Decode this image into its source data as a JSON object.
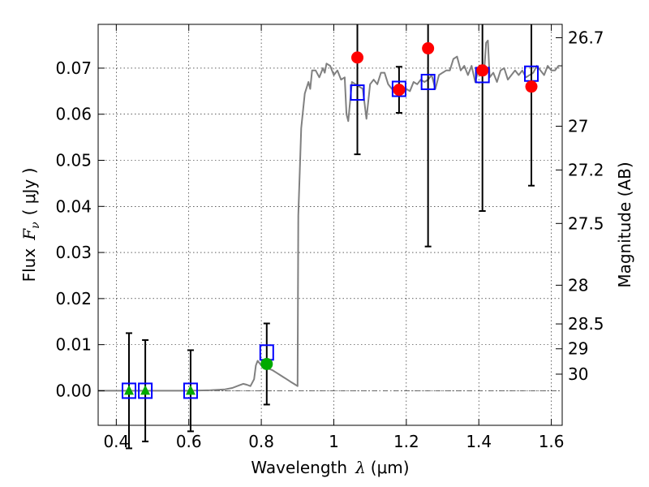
{
  "chart_data": {
    "type": "scatter",
    "xlabel_prefix": "Wavelength",
    "xlabel_symbol": "λ",
    "xlabel_unit": "(μm)",
    "ylabel_prefix": "Flux",
    "ylabel_symbol": "F",
    "ylabel_subscript": "ν",
    "ylabel_unit": "( μJy )",
    "y2label": "Magnitude (AB)",
    "xlim": [
      0.35,
      1.63
    ],
    "ylim": [
      -0.0075,
      0.0795
    ],
    "x_ticks": [
      0.4,
      0.6,
      0.8,
      1.0,
      1.2,
      1.4,
      1.6
    ],
    "x_tick_labels": [
      "0.4",
      "0.6",
      "0.8",
      "1",
      "1.2",
      "1.4",
      "1.6"
    ],
    "y_ticks": [
      0.0,
      0.01,
      0.02,
      0.03,
      0.04,
      0.05,
      0.06,
      0.07
    ],
    "y_tick_labels": [
      "0.00",
      "0.01",
      "0.02",
      "0.03",
      "0.04",
      "0.05",
      "0.06",
      "0.07"
    ],
    "mag_ticks": [
      {
        "label": "26.7",
        "flux": 0.0766
      },
      {
        "label": "27",
        "flux": 0.0574
      },
      {
        "label": "27.2",
        "flux": 0.0479
      },
      {
        "label": "27.5",
        "flux": 0.0363
      },
      {
        "label": "28",
        "flux": 0.0229
      },
      {
        "label": "28.5",
        "flux": 0.0145
      },
      {
        "label": "29",
        "flux": 0.0091
      },
      {
        "label": "30",
        "flux": 0.0036
      }
    ],
    "grid": true,
    "colors": {
      "model": "#808080",
      "model_points": "#0000ff",
      "detections": "#ff0000",
      "upper_limits": "#00aa00",
      "low_sn": "#00aa00",
      "errorbar": "#000000"
    },
    "series": [
      {
        "name": "model spectrum",
        "kind": "line",
        "points": [
          [
            0.35,
            0.0
          ],
          [
            0.6,
            0.0
          ],
          [
            0.66,
            0.0001
          ],
          [
            0.7,
            0.0003
          ],
          [
            0.72,
            0.0006
          ],
          [
            0.74,
            0.0012
          ],
          [
            0.75,
            0.0015
          ],
          [
            0.76,
            0.0013
          ],
          [
            0.77,
            0.001
          ],
          [
            0.78,
            0.0025
          ],
          [
            0.785,
            0.0055
          ],
          [
            0.79,
            0.0065
          ],
          [
            0.8,
            0.0055
          ],
          [
            0.81,
            0.005
          ],
          [
            0.82,
            0.0048
          ],
          [
            0.83,
            0.0045
          ],
          [
            0.84,
            0.004
          ],
          [
            0.85,
            0.0035
          ],
          [
            0.86,
            0.003
          ],
          [
            0.87,
            0.0025
          ],
          [
            0.88,
            0.002
          ],
          [
            0.89,
            0.0015
          ],
          [
            0.9,
            0.001
          ],
          [
            0.902,
            0.038
          ],
          [
            0.91,
            0.057
          ],
          [
            0.92,
            0.0645
          ],
          [
            0.93,
            0.067
          ],
          [
            0.935,
            0.0655
          ],
          [
            0.94,
            0.0695
          ],
          [
            0.95,
            0.0695
          ],
          [
            0.96,
            0.068
          ],
          [
            0.97,
            0.07
          ],
          [
            0.975,
            0.069
          ],
          [
            0.98,
            0.071
          ],
          [
            0.99,
            0.0705
          ],
          [
            1.0,
            0.0685
          ],
          [
            1.01,
            0.0695
          ],
          [
            1.02,
            0.0675
          ],
          [
            1.03,
            0.068
          ],
          [
            1.035,
            0.06
          ],
          [
            1.04,
            0.0585
          ],
          [
            1.05,
            0.067
          ],
          [
            1.07,
            0.066
          ],
          [
            1.08,
            0.0655
          ],
          [
            1.09,
            0.059
          ],
          [
            1.1,
            0.0665
          ],
          [
            1.11,
            0.0675
          ],
          [
            1.12,
            0.0665
          ],
          [
            1.13,
            0.069
          ],
          [
            1.14,
            0.069
          ],
          [
            1.15,
            0.0665
          ],
          [
            1.16,
            0.0655
          ],
          [
            1.17,
            0.066
          ],
          [
            1.19,
            0.0655
          ],
          [
            1.2,
            0.0655
          ],
          [
            1.21,
            0.065
          ],
          [
            1.22,
            0.067
          ],
          [
            1.23,
            0.0665
          ],
          [
            1.24,
            0.0675
          ],
          [
            1.25,
            0.067
          ],
          [
            1.26,
            0.0675
          ],
          [
            1.27,
            0.0685
          ],
          [
            1.28,
            0.0655
          ],
          [
            1.29,
            0.0685
          ],
          [
            1.3,
            0.069
          ],
          [
            1.31,
            0.0695
          ],
          [
            1.32,
            0.0695
          ],
          [
            1.33,
            0.072
          ],
          [
            1.34,
            0.0725
          ],
          [
            1.35,
            0.0695
          ],
          [
            1.36,
            0.0705
          ],
          [
            1.37,
            0.0685
          ],
          [
            1.38,
            0.0705
          ],
          [
            1.39,
            0.067
          ],
          [
            1.4,
            0.07
          ],
          [
            1.41,
            0.07
          ],
          [
            1.415,
            0.0695
          ],
          [
            1.42,
            0.0755
          ],
          [
            1.425,
            0.076
          ],
          [
            1.43,
            0.068
          ],
          [
            1.44,
            0.069
          ],
          [
            1.45,
            0.067
          ],
          [
            1.46,
            0.0695
          ],
          [
            1.47,
            0.07
          ],
          [
            1.48,
            0.0675
          ],
          [
            1.49,
            0.0685
          ],
          [
            1.5,
            0.0695
          ],
          [
            1.51,
            0.0685
          ],
          [
            1.52,
            0.0695
          ],
          [
            1.53,
            0.068
          ],
          [
            1.54,
            0.0685
          ],
          [
            1.55,
            0.069
          ],
          [
            1.56,
            0.0705
          ],
          [
            1.57,
            0.0695
          ],
          [
            1.58,
            0.0685
          ],
          [
            1.59,
            0.0705
          ],
          [
            1.6,
            0.0695
          ],
          [
            1.61,
            0.0695
          ],
          [
            1.62,
            0.0705
          ],
          [
            1.63,
            0.0705
          ]
        ]
      },
      {
        "name": "model photometry",
        "kind": "open-square",
        "points": [
          [
            0.435,
            0.0
          ],
          [
            0.48,
            0.0
          ],
          [
            0.605,
            0.0
          ],
          [
            0.815,
            0.0083
          ],
          [
            1.065,
            0.0647
          ],
          [
            1.18,
            0.0655
          ],
          [
            1.26,
            0.067
          ],
          [
            1.41,
            0.0685
          ],
          [
            1.545,
            0.0688
          ]
        ]
      },
      {
        "name": "detections",
        "kind": "filled-circle",
        "points": [
          [
            1.065,
            0.0723,
            0.021
          ],
          [
            1.18,
            0.0653,
            0.005
          ],
          [
            1.26,
            0.0743,
            0.043
          ],
          [
            1.41,
            0.0695,
            0.0305
          ],
          [
            1.545,
            0.066,
            0.0215
          ]
        ]
      },
      {
        "name": "low signal-to-noise",
        "kind": "green-circle",
        "points": [
          [
            0.815,
            0.0058,
            0.0088
          ]
        ]
      },
      {
        "name": "upper limits",
        "kind": "triangle",
        "points": [
          [
            0.435,
            0.0,
            0.0125
          ],
          [
            0.48,
            0.0,
            0.011
          ],
          [
            0.605,
            0.0,
            0.0088
          ]
        ]
      }
    ]
  }
}
